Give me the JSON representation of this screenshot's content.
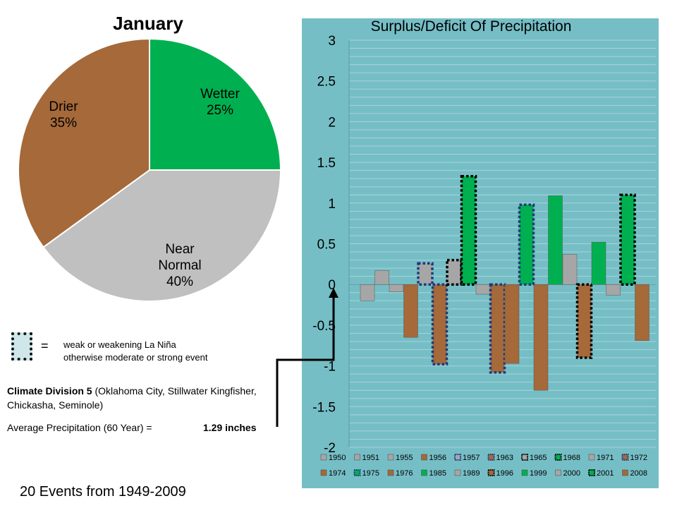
{
  "pie": {
    "title": "January",
    "slices": [
      {
        "name": "Wetter",
        "label": "Wetter",
        "pct_label": "25%",
        "value": 25,
        "color": "#00b050"
      },
      {
        "name": "Near Normal",
        "label": "Near\nNormal",
        "pct_label": "40%",
        "value": 40,
        "color": "#c0c0c0"
      },
      {
        "name": "Drier",
        "label": "Drier",
        "pct_label": "35%",
        "value": 35,
        "color": "#a5693a"
      }
    ]
  },
  "legend_note": {
    "equals": "=",
    "line1": "weak or weakening La Niña",
    "line2": "otherwise moderate or strong event"
  },
  "division": {
    "bold": "Climate Division 5",
    "rest": " (Oklahoma City, Stillwater Kingfisher, Chickasha, Seminole)"
  },
  "average": {
    "label": "Average Precipitation (60 Year) =",
    "value": "1.29 inches"
  },
  "footer": "20 Events from 1949-2009",
  "colors": {
    "plot_bg": "#76bec6",
    "wetter": "#00b050",
    "normal": "#a6a6a6",
    "drier": "#a5693a"
  },
  "chart_data": {
    "type": "bar",
    "title": "Surplus/Deficit Of Precipitation",
    "ylim": [
      -2,
      3
    ],
    "yticks": [
      "3",
      "2.5",
      "2",
      "1.5",
      "1",
      "0.5",
      "0",
      "-0.5",
      "-1",
      "-1.5",
      "-2"
    ],
    "grid": true,
    "legend_position": "bottom",
    "series": [
      {
        "name": "1950",
        "value": -0.2,
        "cls": "normal",
        "la_nina_weak": false
      },
      {
        "name": "1951",
        "value": 0.17,
        "cls": "normal",
        "la_nina_weak": false
      },
      {
        "name": "1955",
        "value": -0.09,
        "cls": "normal",
        "la_nina_weak": false
      },
      {
        "name": "1956",
        "value": -0.65,
        "cls": "drier",
        "la_nina_weak": false
      },
      {
        "name": "1957",
        "value": 0.26,
        "cls": "normal",
        "la_nina_weak": true
      },
      {
        "name": "1963",
        "value": -0.98,
        "cls": "drier",
        "la_nina_weak": true
      },
      {
        "name": "1965",
        "value": 0.3,
        "cls": "normal",
        "la_nina_weak": true
      },
      {
        "name": "1968",
        "value": 1.33,
        "cls": "wetter",
        "la_nina_weak": true
      },
      {
        "name": "1971",
        "value": -0.12,
        "cls": "normal",
        "la_nina_weak": false
      },
      {
        "name": "1972",
        "value": -1.08,
        "cls": "drier",
        "la_nina_weak": true
      },
      {
        "name": "1974",
        "value": -0.97,
        "cls": "drier",
        "la_nina_weak": false
      },
      {
        "name": "1975",
        "value": 0.98,
        "cls": "wetter",
        "la_nina_weak": true
      },
      {
        "name": "1976",
        "value": -1.3,
        "cls": "drier",
        "la_nina_weak": false
      },
      {
        "name": "1985",
        "value": 1.09,
        "cls": "wetter",
        "la_nina_weak": false
      },
      {
        "name": "1989",
        "value": 0.37,
        "cls": "normal",
        "la_nina_weak": false
      },
      {
        "name": "1996",
        "value": -0.9,
        "cls": "drier",
        "la_nina_weak": true
      },
      {
        "name": "1999",
        "value": 0.52,
        "cls": "wetter",
        "la_nina_weak": false
      },
      {
        "name": "2000",
        "value": -0.13,
        "cls": "normal",
        "la_nina_weak": false
      },
      {
        "name": "2001",
        "value": 1.1,
        "cls": "wetter",
        "la_nina_weak": true
      },
      {
        "name": "2008",
        "value": -0.69,
        "cls": "drier",
        "la_nina_weak": false
      }
    ]
  }
}
